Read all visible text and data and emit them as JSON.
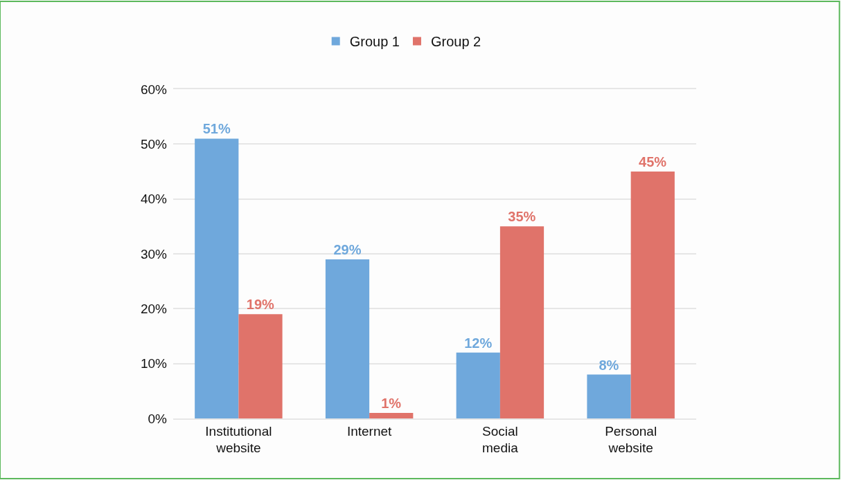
{
  "chart_data": {
    "type": "bar",
    "categories": [
      "Institutional website",
      "Internet",
      "Social media",
      "Personal website"
    ],
    "series": [
      {
        "name": "Group 1",
        "color": "#6fa8dc",
        "values": [
          51,
          29,
          12,
          8
        ],
        "value_labels": [
          "51%",
          "29%",
          "12%",
          "8%"
        ]
      },
      {
        "name": "Group 2",
        "color": "#e0736a",
        "values": [
          19,
          1,
          35,
          45
        ],
        "value_labels": [
          "19%",
          "1%",
          "35%",
          "45%"
        ]
      }
    ],
    "ylim": [
      0,
      60
    ],
    "yticks": [
      {
        "value": 0,
        "label": "0%"
      },
      {
        "value": 10,
        "label": "10%"
      },
      {
        "value": 20,
        "label": "20%"
      },
      {
        "value": 30,
        "label": "30%"
      },
      {
        "value": 40,
        "label": "40%"
      },
      {
        "value": 50,
        "label": "50%"
      },
      {
        "value": 60,
        "label": "60%"
      }
    ],
    "grid": "y",
    "legend": "top"
  }
}
